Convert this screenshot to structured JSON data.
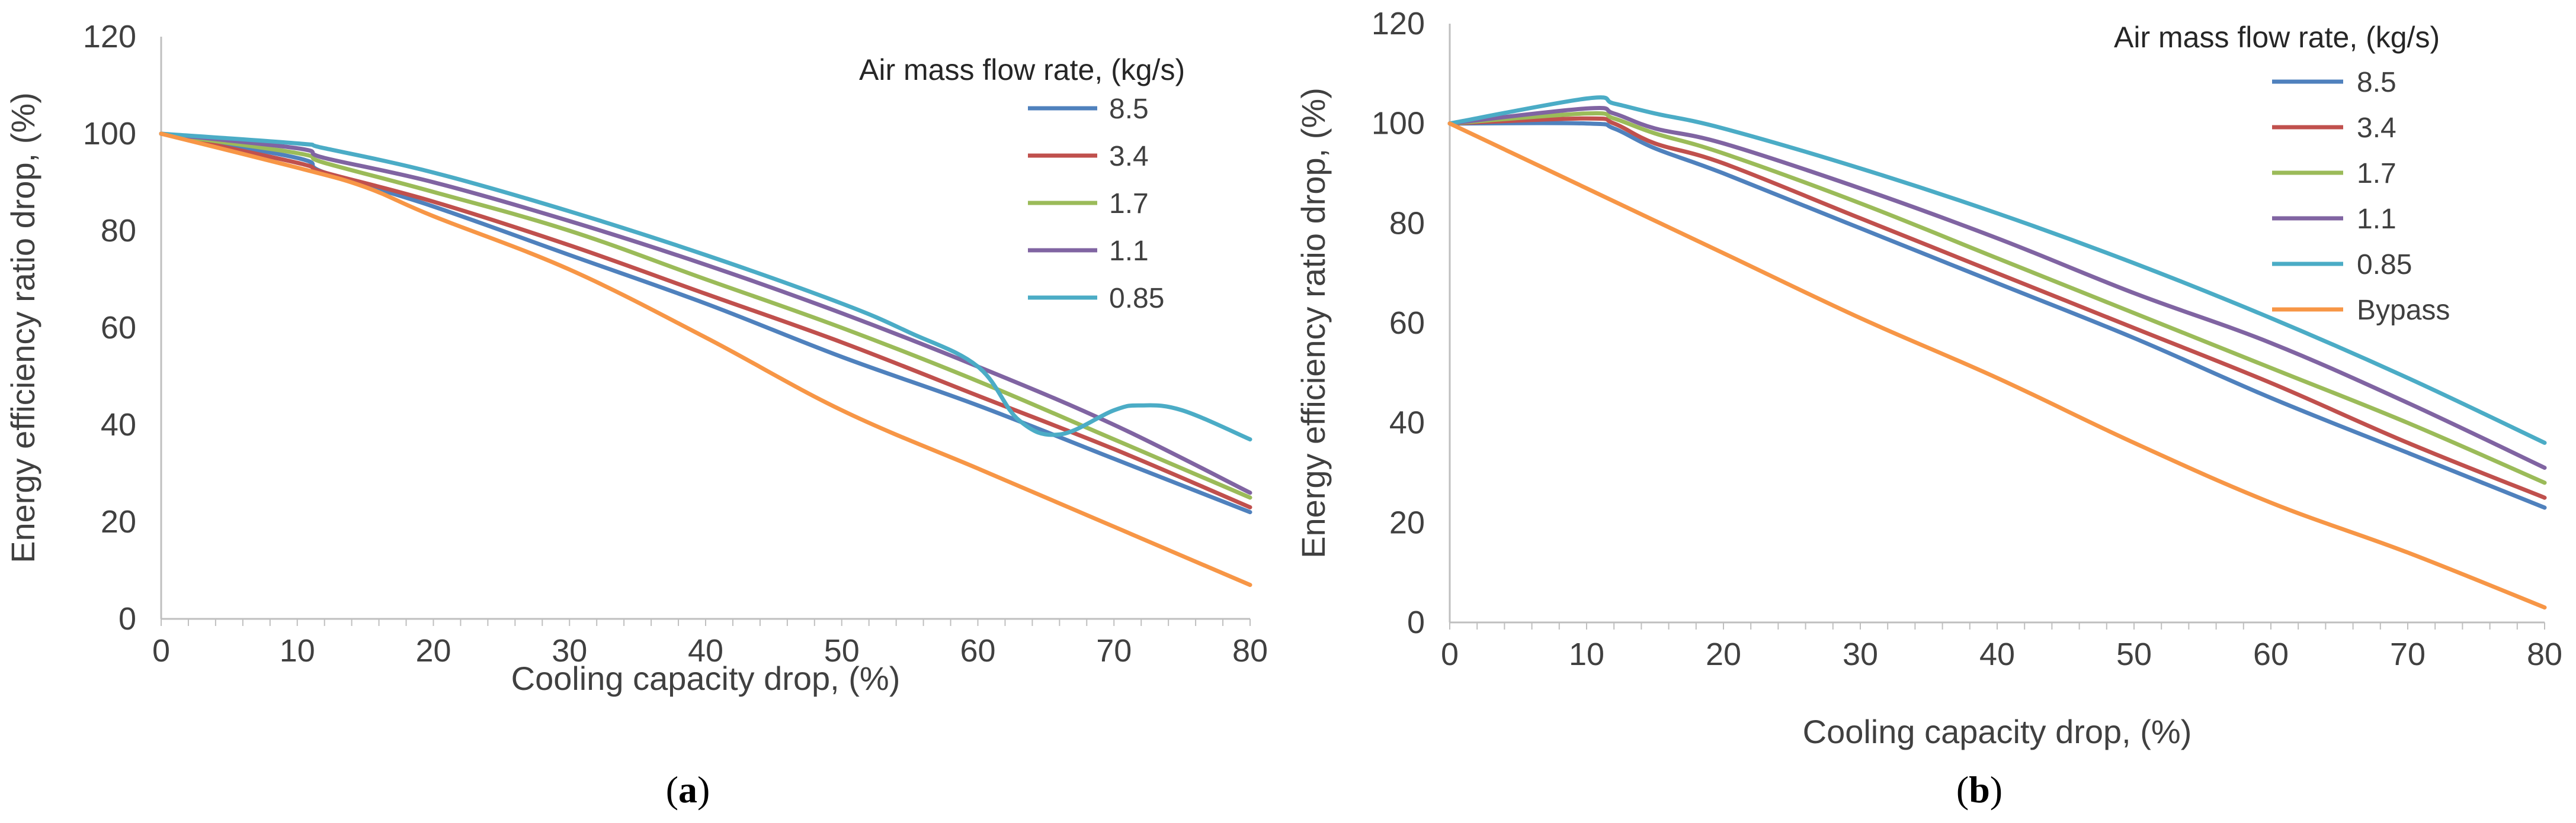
{
  "chart_data": [
    {
      "type": "line",
      "panel_label": "a",
      "xlabel": "Cooling capacity drop, (%)",
      "ylabel": "Energy efficiency ratio drop, (%)",
      "xlim": [
        0,
        80
      ],
      "ylim": [
        0,
        120
      ],
      "xticks": [
        0,
        10,
        20,
        30,
        40,
        50,
        60,
        70,
        80
      ],
      "yticks": [
        0,
        20,
        40,
        60,
        80,
        100,
        120
      ],
      "grid": false,
      "legend_title": "Air mass flow rate, (kg/s)",
      "legend_position": "top-right",
      "series": [
        {
          "name": "8.5",
          "color": "#4F81BD",
          "points": [
            [
              0,
              100
            ],
            [
              10,
              95
            ],
            [
              12,
              92
            ],
            [
              20,
              85
            ],
            [
              30,
              75
            ],
            [
              40,
              65
            ],
            [
              50,
              54
            ],
            [
              60,
              44
            ],
            [
              70,
              33
            ],
            [
              80,
              22
            ]
          ]
        },
        {
          "name": "3.4",
          "color": "#C0504D",
          "points": [
            [
              0,
              100
            ],
            [
              10,
              94
            ],
            [
              12,
              92
            ],
            [
              20,
              86
            ],
            [
              30,
              77
            ],
            [
              40,
              67
            ],
            [
              50,
              57
            ],
            [
              60,
              46
            ],
            [
              70,
              35
            ],
            [
              80,
              23
            ]
          ]
        },
        {
          "name": "1.7",
          "color": "#9BBB59",
          "points": [
            [
              0,
              100
            ],
            [
              10,
              96
            ],
            [
              12,
              94
            ],
            [
              20,
              88
            ],
            [
              30,
              80
            ],
            [
              40,
              70
            ],
            [
              50,
              60
            ],
            [
              60,
              49
            ],
            [
              70,
              37
            ],
            [
              80,
              25
            ]
          ]
        },
        {
          "name": "1.1",
          "color": "#8064A2",
          "points": [
            [
              0,
              100
            ],
            [
              10,
              97
            ],
            [
              12,
              95
            ],
            [
              20,
              90
            ],
            [
              30,
              82
            ],
            [
              40,
              73
            ],
            [
              50,
              63
            ],
            [
              60,
              52
            ],
            [
              70,
              40
            ],
            [
              80,
              26
            ]
          ]
        },
        {
          "name": "0.85",
          "color": "#4BACC6",
          "points": [
            [
              0,
              100
            ],
            [
              10,
              98
            ],
            [
              12,
              97
            ],
            [
              20,
              92
            ],
            [
              30,
              84
            ],
            [
              40,
              75
            ],
            [
              50,
              65
            ],
            [
              55,
              59
            ],
            [
              60,
              52
            ],
            [
              63,
              41
            ],
            [
              66,
              38
            ],
            [
              70,
              43
            ],
            [
              72,
              44
            ],
            [
              75,
              43
            ],
            [
              80,
              37
            ]
          ]
        },
        {
          "name": "",
          "color": "#F79646",
          "points": [
            [
              0,
              100
            ],
            [
              10,
              93
            ],
            [
              15,
              89
            ],
            [
              20,
              83
            ],
            [
              30,
              72
            ],
            [
              40,
              58
            ],
            [
              50,
              43
            ],
            [
              60,
              31
            ],
            [
              65,
              25
            ],
            [
              70,
              19
            ],
            [
              80,
              7
            ]
          ]
        }
      ]
    },
    {
      "type": "line",
      "panel_label": "b",
      "xlabel": "Cooling capacity drop, (%)",
      "ylabel": "Energy efficiency ratio drop, (%)",
      "xlim": [
        0,
        80
      ],
      "ylim": [
        0,
        120
      ],
      "xticks": [
        0,
        10,
        20,
        30,
        40,
        50,
        60,
        70,
        80
      ],
      "yticks": [
        0,
        20,
        40,
        60,
        80,
        100,
        120
      ],
      "grid": false,
      "legend_title": "Air mass flow rate, (kg/s)",
      "legend_position": "top-right",
      "series": [
        {
          "name": "8.5",
          "color": "#4F81BD",
          "points": [
            [
              0,
              100
            ],
            [
              10,
              100
            ],
            [
              12,
              99
            ],
            [
              15,
              95
            ],
            [
              20,
              90
            ],
            [
              30,
              79
            ],
            [
              40,
              68
            ],
            [
              50,
              57
            ],
            [
              60,
              45
            ],
            [
              70,
              34
            ],
            [
              80,
              23
            ]
          ]
        },
        {
          "name": "3.4",
          "color": "#C0504D",
          "points": [
            [
              0,
              100
            ],
            [
              10,
              101
            ],
            [
              12,
              100
            ],
            [
              15,
              96
            ],
            [
              20,
              92
            ],
            [
              30,
              81
            ],
            [
              40,
              70
            ],
            [
              50,
              59
            ],
            [
              60,
              48
            ],
            [
              70,
              36
            ],
            [
              80,
              25
            ]
          ]
        },
        {
          "name": "1.7",
          "color": "#9BBB59",
          "points": [
            [
              0,
              100
            ],
            [
              10,
              102
            ],
            [
              12,
              101
            ],
            [
              15,
              98
            ],
            [
              20,
              94
            ],
            [
              30,
              84
            ],
            [
              40,
              73
            ],
            [
              50,
              62
            ],
            [
              60,
              51
            ],
            [
              70,
              40
            ],
            [
              80,
              28
            ]
          ]
        },
        {
          "name": "1.1",
          "color": "#8064A2",
          "points": [
            [
              0,
              100
            ],
            [
              10,
              103
            ],
            [
              12,
              102
            ],
            [
              15,
              99
            ],
            [
              20,
              96
            ],
            [
              30,
              87
            ],
            [
              40,
              77
            ],
            [
              50,
              66
            ],
            [
              60,
              56
            ],
            [
              70,
              44
            ],
            [
              80,
              31
            ]
          ]
        },
        {
          "name": "0.85",
          "color": "#4BACC6",
          "points": [
            [
              0,
              100
            ],
            [
              10,
              105
            ],
            [
              12,
              104
            ],
            [
              15,
              102
            ],
            [
              20,
              99
            ],
            [
              30,
              91
            ],
            [
              40,
              82
            ],
            [
              50,
              72
            ],
            [
              60,
              61
            ],
            [
              70,
              49
            ],
            [
              80,
              36
            ]
          ]
        },
        {
          "name": "Bypass",
          "color": "#F79646",
          "points": [
            [
              0,
              100
            ],
            [
              10,
              87
            ],
            [
              20,
              74
            ],
            [
              30,
              61
            ],
            [
              40,
              49
            ],
            [
              50,
              36
            ],
            [
              60,
              24
            ],
            [
              70,
              14
            ],
            [
              80,
              3
            ]
          ]
        }
      ]
    }
  ]
}
